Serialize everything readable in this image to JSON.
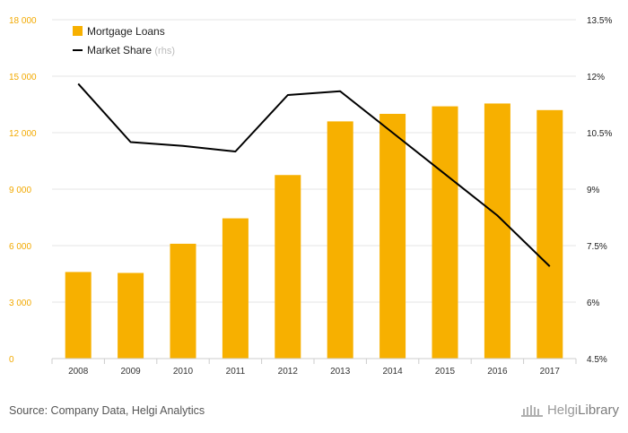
{
  "chart_data": {
    "type": "bar+line",
    "categories": [
      "2008",
      "2009",
      "2010",
      "2011",
      "2012",
      "2013",
      "2014",
      "2015",
      "2016",
      "2017"
    ],
    "series": [
      {
        "name": "Mortgage Loans",
        "type": "bar",
        "axis": "left",
        "color": "#f7b000",
        "values": [
          4600,
          4550,
          6100,
          7450,
          9750,
          12600,
          13000,
          13400,
          13550,
          13200
        ]
      },
      {
        "name": "Market Share",
        "name_suffix": "(rhs)",
        "type": "line",
        "axis": "right",
        "color": "#000000",
        "values": [
          11.8,
          10.25,
          10.15,
          10.0,
          11.5,
          11.6,
          10.5,
          9.4,
          8.3,
          6.95
        ]
      }
    ],
    "y_left": {
      "ylim": [
        0,
        18000
      ],
      "ticks": [
        0,
        3000,
        6000,
        9000,
        12000,
        15000,
        18000
      ],
      "tick_labels": [
        "0",
        "3 000",
        "6 000",
        "9 000",
        "12 000",
        "15 000",
        "18 000"
      ],
      "color": "#f2a900"
    },
    "y_right": {
      "ylim": [
        4.5,
        13.5
      ],
      "ticks": [
        4.5,
        6,
        7.5,
        9,
        10.5,
        12,
        13.5
      ],
      "tick_labels": [
        "4.5%",
        "6%",
        "7.5%",
        "9%",
        "10.5%",
        "12%",
        "13.5%"
      ]
    },
    "grid": "horizontal",
    "legend_position": "top-left"
  },
  "footer": {
    "source": "Source: Company Data, Helgi Analytics",
    "logo_part1": "Helgi",
    "logo_part2": "Library"
  }
}
